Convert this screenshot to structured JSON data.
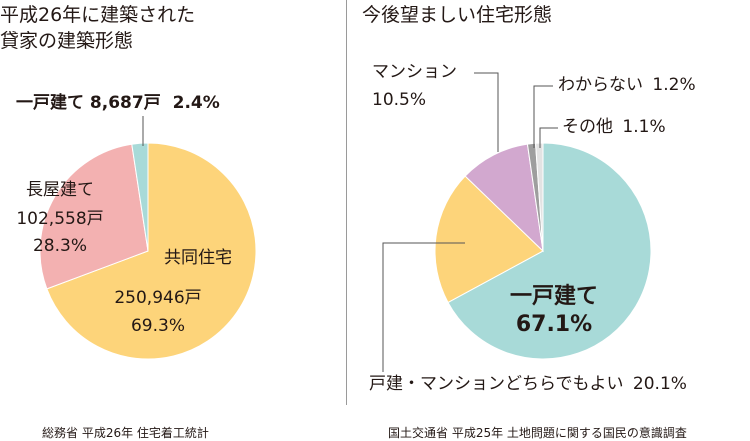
{
  "chart_data": [
    {
      "type": "pie",
      "title_lines": [
        "平成26年に建築された",
        "貸家の建築形態"
      ],
      "source": "総務省 平成26年 住宅着工統計",
      "slices": [
        {
          "label": "共同住宅",
          "value": 69.3,
          "count": "250,946戸",
          "percent": "69.3%",
          "color": "#fdd47a"
        },
        {
          "label": "長屋建て",
          "value": 28.3,
          "count": "102,558戸",
          "percent": "28.3%",
          "color": "#f3b1b1"
        },
        {
          "label": "一戸建て",
          "value": 2.4,
          "count": "8,687戸",
          "percent": "2.4%",
          "color": "#a8dad8"
        }
      ]
    },
    {
      "type": "pie",
      "title": "今後望ましい住宅形態",
      "source": "国土交通省 平成25年 土地問題に関する国民の意識調査",
      "slices": [
        {
          "label": "一戸建て",
          "value": 67.1,
          "percent": "67.1%",
          "color": "#a8dad8"
        },
        {
          "label": "戸建・マンションどちらでもよい",
          "value": 20.1,
          "percent": "20.1%",
          "color": "#fdd47a"
        },
        {
          "label": "マンション",
          "value": 10.5,
          "percent": "10.5%",
          "color": "#d2a8cf"
        },
        {
          "label": "わからない",
          "value": 1.2,
          "percent": "1.2%",
          "color": "#9e9e9e"
        },
        {
          "label": "その他",
          "value": 1.1,
          "percent": "1.1%",
          "color": "#e3e3e3"
        }
      ]
    }
  ]
}
